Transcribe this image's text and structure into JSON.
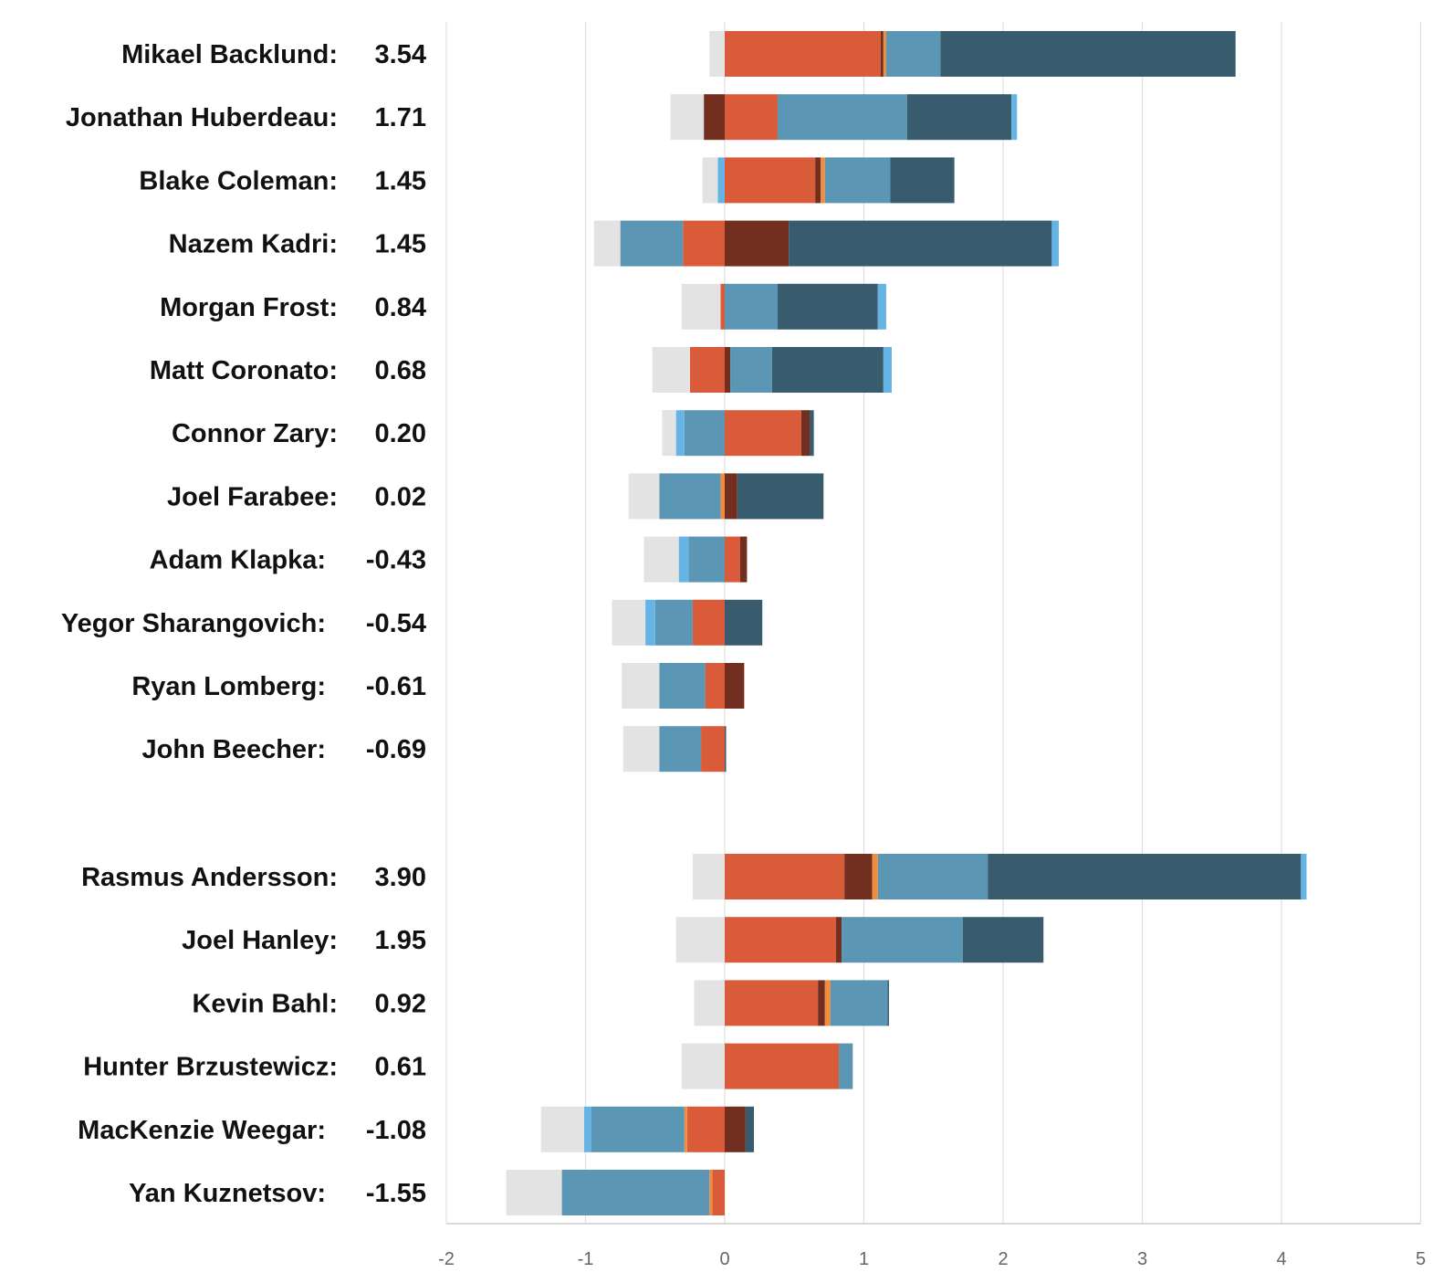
{
  "colors": {
    "light_gray": "#e3e3e3",
    "orange_red": "#d95b3a",
    "dark_brown": "#722f1f",
    "orange": "#ef8c3d",
    "steel_blue": "#5b96b4",
    "dark_slate": "#385b6e",
    "sky_blue": "#66b3e5",
    "gridline": "#e0e0e0",
    "axis_line": "#cccccc"
  },
  "chart_data": {
    "type": "bar",
    "orientation": "horizontal",
    "stacked": "diverging",
    "x_ticks": [
      -2,
      -1,
      0,
      1,
      2,
      3,
      4,
      5
    ],
    "xlim": [
      -2,
      5
    ],
    "grid": true,
    "legend": "none",
    "groups": [
      {
        "players": [
          {
            "name": "Mikael Backlund:",
            "value": "3.54",
            "neg": [
              {
                "c": "light_gray",
                "v": 0.11
              }
            ],
            "pos": [
              {
                "c": "orange_red",
                "v": 1.12
              },
              {
                "c": "dark_brown",
                "v": 0.02
              },
              {
                "c": "orange",
                "v": 0.02
              },
              {
                "c": "steel_blue",
                "v": 0.39
              },
              {
                "c": "dark_slate",
                "v": 2.12
              }
            ]
          },
          {
            "name": "Jonathan Huberdeau:",
            "value": "1.71",
            "neg": [
              {
                "c": "dark_brown",
                "v": 0.15
              },
              {
                "c": "light_gray",
                "v": 0.24
              }
            ],
            "pos": [
              {
                "c": "orange_red",
                "v": 0.38
              },
              {
                "c": "steel_blue",
                "v": 0.93
              },
              {
                "c": "dark_slate",
                "v": 0.75
              },
              {
                "c": "sky_blue",
                "v": 0.04
              }
            ]
          },
          {
            "name": "Blake Coleman:",
            "value": "1.45",
            "neg": [
              {
                "c": "sky_blue",
                "v": 0.05
              },
              {
                "c": "light_gray",
                "v": 0.11
              }
            ],
            "pos": [
              {
                "c": "orange_red",
                "v": 0.65
              },
              {
                "c": "dark_brown",
                "v": 0.04
              },
              {
                "c": "orange",
                "v": 0.03
              },
              {
                "c": "steel_blue",
                "v": 0.47
              },
              {
                "c": "dark_slate",
                "v": 0.46
              }
            ]
          },
          {
            "name": "Nazem Kadri:",
            "value": "1.45",
            "neg": [
              {
                "c": "orange_red",
                "v": 0.3
              },
              {
                "c": "steel_blue",
                "v": 0.45
              },
              {
                "c": "light_gray",
                "v": 0.19
              }
            ],
            "pos": [
              {
                "c": "dark_brown",
                "v": 0.46
              },
              {
                "c": "dark_slate",
                "v": 1.89
              },
              {
                "c": "sky_blue",
                "v": 0.05
              }
            ]
          },
          {
            "name": "Morgan Frost:",
            "value": "0.84",
            "neg": [
              {
                "c": "orange_red",
                "v": 0.03
              },
              {
                "c": "light_gray",
                "v": 0.28
              }
            ],
            "pos": [
              {
                "c": "steel_blue",
                "v": 0.38
              },
              {
                "c": "dark_slate",
                "v": 0.72
              },
              {
                "c": "sky_blue",
                "v": 0.06
              }
            ]
          },
          {
            "name": "Matt Coronato:",
            "value": "0.68",
            "neg": [
              {
                "c": "orange_red",
                "v": 0.25
              },
              {
                "c": "light_gray",
                "v": 0.27
              }
            ],
            "pos": [
              {
                "c": "dark_brown",
                "v": 0.04
              },
              {
                "c": "steel_blue",
                "v": 0.3
              },
              {
                "c": "dark_slate",
                "v": 0.8
              },
              {
                "c": "sky_blue",
                "v": 0.06
              }
            ]
          },
          {
            "name": "Connor Zary:",
            "value": "0.20",
            "neg": [
              {
                "c": "steel_blue",
                "v": 0.29
              },
              {
                "c": "sky_blue",
                "v": 0.06
              },
              {
                "c": "light_gray",
                "v": 0.1
              }
            ],
            "pos": [
              {
                "c": "orange_red",
                "v": 0.55
              },
              {
                "c": "dark_brown",
                "v": 0.06
              },
              {
                "c": "dark_slate",
                "v": 0.03
              }
            ]
          },
          {
            "name": "Joel Farabee:",
            "value": "0.02",
            "neg": [
              {
                "c": "orange",
                "v": 0.03
              },
              {
                "c": "steel_blue",
                "v": 0.44
              },
              {
                "c": "light_gray",
                "v": 0.22
              }
            ],
            "pos": [
              {
                "c": "dark_brown",
                "v": 0.09
              },
              {
                "c": "dark_slate",
                "v": 0.62
              }
            ]
          },
          {
            "name": "Adam Klapka:",
            "value": "-0.43",
            "neg": [
              {
                "c": "steel_blue",
                "v": 0.26
              },
              {
                "c": "sky_blue",
                "v": 0.07
              },
              {
                "c": "light_gray",
                "v": 0.25
              }
            ],
            "pos": [
              {
                "c": "orange_red",
                "v": 0.11
              },
              {
                "c": "dark_brown",
                "v": 0.05
              }
            ]
          },
          {
            "name": "Yegor Sharangovich:",
            "value": "-0.54",
            "neg": [
              {
                "c": "orange_red",
                "v": 0.23
              },
              {
                "c": "steel_blue",
                "v": 0.27
              },
              {
                "c": "sky_blue",
                "v": 0.07
              },
              {
                "c": "light_gray",
                "v": 0.24
              }
            ],
            "pos": [
              {
                "c": "dark_slate",
                "v": 0.27
              }
            ]
          },
          {
            "name": "Ryan Lomberg:",
            "value": "-0.61",
            "neg": [
              {
                "c": "orange_red",
                "v": 0.14
              },
              {
                "c": "steel_blue",
                "v": 0.33
              },
              {
                "c": "light_gray",
                "v": 0.27
              }
            ],
            "pos": [
              {
                "c": "dark_brown",
                "v": 0.14
              }
            ]
          },
          {
            "name": "John Beecher:",
            "value": "-0.69",
            "neg": [
              {
                "c": "orange_red",
                "v": 0.17
              },
              {
                "c": "steel_blue",
                "v": 0.3
              },
              {
                "c": "light_gray",
                "v": 0.26
              }
            ],
            "pos": [
              {
                "c": "dark_slate",
                "v": 0.01
              }
            ]
          }
        ]
      },
      {
        "players": [
          {
            "name": "Rasmus Andersson:",
            "value": "3.90",
            "neg": [
              {
                "c": "light_gray",
                "v": 0.23
              }
            ],
            "pos": [
              {
                "c": "orange_red",
                "v": 0.86
              },
              {
                "c": "dark_brown",
                "v": 0.2
              },
              {
                "c": "orange",
                "v": 0.04
              },
              {
                "c": "steel_blue",
                "v": 0.79
              },
              {
                "c": "dark_slate",
                "v": 2.25
              },
              {
                "c": "sky_blue",
                "v": 0.04
              }
            ]
          },
          {
            "name": "Joel Hanley:",
            "value": "1.95",
            "neg": [
              {
                "c": "light_gray",
                "v": 0.35
              }
            ],
            "pos": [
              {
                "c": "orange_red",
                "v": 0.8
              },
              {
                "c": "dark_brown",
                "v": 0.04
              },
              {
                "c": "steel_blue",
                "v": 0.87
              },
              {
                "c": "dark_slate",
                "v": 0.58
              }
            ]
          },
          {
            "name": "Kevin Bahl:",
            "value": "0.92",
            "neg": [
              {
                "c": "light_gray",
                "v": 0.22
              }
            ],
            "pos": [
              {
                "c": "orange_red",
                "v": 0.67
              },
              {
                "c": "dark_brown",
                "v": 0.05
              },
              {
                "c": "orange",
                "v": 0.04
              },
              {
                "c": "steel_blue",
                "v": 0.41
              },
              {
                "c": "dark_slate",
                "v": 0.01
              }
            ]
          },
          {
            "name": "Hunter Brzustewicz:",
            "value": "0.61",
            "neg": [
              {
                "c": "light_gray",
                "v": 0.31
              }
            ],
            "pos": [
              {
                "c": "orange_red",
                "v": 0.82
              },
              {
                "c": "steel_blue",
                "v": 0.1
              }
            ]
          },
          {
            "name": "MacKenzie Weegar:",
            "value": "-1.08",
            "neg": [
              {
                "c": "orange_red",
                "v": 0.27
              },
              {
                "c": "orange",
                "v": 0.02
              },
              {
                "c": "steel_blue",
                "v": 0.67
              },
              {
                "c": "sky_blue",
                "v": 0.05
              },
              {
                "c": "light_gray",
                "v": 0.31
              }
            ],
            "pos": [
              {
                "c": "dark_brown",
                "v": 0.15
              },
              {
                "c": "dark_slate",
                "v": 0.06
              }
            ]
          },
          {
            "name": "Yan Kuznetsov:",
            "value": "-1.55",
            "neg": [
              {
                "c": "orange_red",
                "v": 0.09
              },
              {
                "c": "orange",
                "v": 0.02
              },
              {
                "c": "steel_blue",
                "v": 1.06
              },
              {
                "c": "light_gray",
                "v": 0.4
              }
            ],
            "pos": []
          }
        ]
      }
    ]
  }
}
